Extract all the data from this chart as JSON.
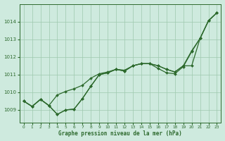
{
  "title": "Graphe pression niveau de la mer (hPa)",
  "background_color": "#ceeade",
  "grid_color": "#9ec8ae",
  "line_color": "#2d6a2d",
  "xlim": [
    -0.5,
    23.5
  ],
  "ylim": [
    1008.3,
    1015.0
  ],
  "yticks": [
    1009,
    1010,
    1011,
    1012,
    1013,
    1014
  ],
  "xtick_labels": [
    "0",
    "1",
    "2",
    "3",
    "4",
    "5",
    "6",
    "7",
    "8",
    "9",
    "10",
    "11",
    "12",
    "13",
    "14",
    "15",
    "16",
    "17",
    "18",
    "19",
    "20",
    "21",
    "22",
    "23"
  ],
  "series": [
    [
      1009.5,
      1009.2,
      1009.6,
      1009.2,
      1009.85,
      1010.05,
      1010.2,
      1010.4,
      1010.8,
      1011.05,
      1011.15,
      1011.3,
      1011.25,
      1011.5,
      1011.6,
      1011.6,
      1011.35,
      1011.1,
      1011.05,
      1011.45,
      1012.3,
      1013.05,
      1014.05,
      1014.5
    ],
    [
      1009.5,
      1009.2,
      1009.6,
      1009.2,
      1008.75,
      1009.0,
      1009.05,
      1009.65,
      1010.35,
      1011.0,
      1011.1,
      1011.3,
      1011.2,
      1011.5,
      1011.65,
      1011.65,
      1011.5,
      1011.3,
      1011.15,
      1011.5,
      1011.5,
      1013.05,
      1014.05,
      1014.5
    ],
    [
      1009.5,
      1009.2,
      1009.6,
      1009.2,
      1008.75,
      1009.0,
      1009.05,
      1009.65,
      1010.35,
      1011.0,
      1011.1,
      1011.3,
      1011.2,
      1011.5,
      1011.65,
      1011.65,
      1011.5,
      1011.3,
      1011.15,
      1011.5,
      1012.35,
      1013.05,
      1014.05,
      1014.5
    ]
  ],
  "series_with_marker": [
    true,
    true,
    true
  ]
}
